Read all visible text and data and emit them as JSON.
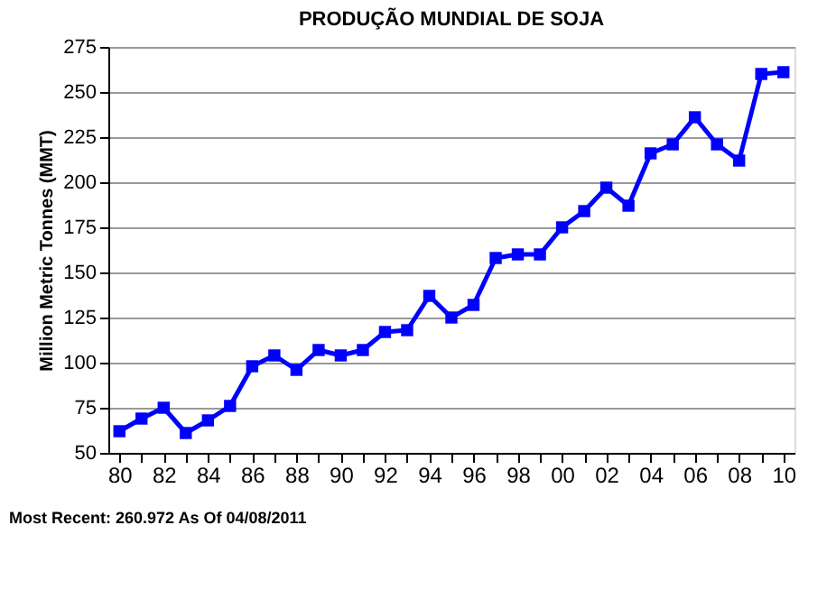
{
  "chart_data": {
    "type": "line",
    "title": "PRODUÇÃO MUNDIAL DE SOJA",
    "ylabel": "Million Metric Tonnes (MMT)",
    "categories": [
      "80",
      null,
      "82",
      null,
      "84",
      null,
      "86",
      null,
      "88",
      null,
      "90",
      null,
      "92",
      null,
      "94",
      null,
      "96",
      null,
      "98",
      null,
      "00",
      null,
      "02",
      null,
      "04",
      null,
      "06",
      null,
      "08",
      null,
      "10"
    ],
    "series": [
      {
        "color": "#0000ff",
        "values": [
          62,
          69,
          75,
          61,
          68,
          76,
          98,
          104,
          96,
          107,
          104,
          107,
          117,
          118,
          137,
          125,
          132,
          158,
          160,
          160,
          175,
          184,
          197,
          187,
          216,
          221,
          236,
          221,
          212,
          260,
          261
        ]
      }
    ],
    "ylim": [
      50,
      275
    ],
    "yticks": [
      50,
      75,
      100,
      125,
      150,
      175,
      200,
      225,
      250,
      275
    ],
    "grid": "y",
    "marker": "square",
    "line_style": "solid",
    "annotations": [
      "Most Recent: 260.972 As Of 04/08/2011"
    ]
  }
}
